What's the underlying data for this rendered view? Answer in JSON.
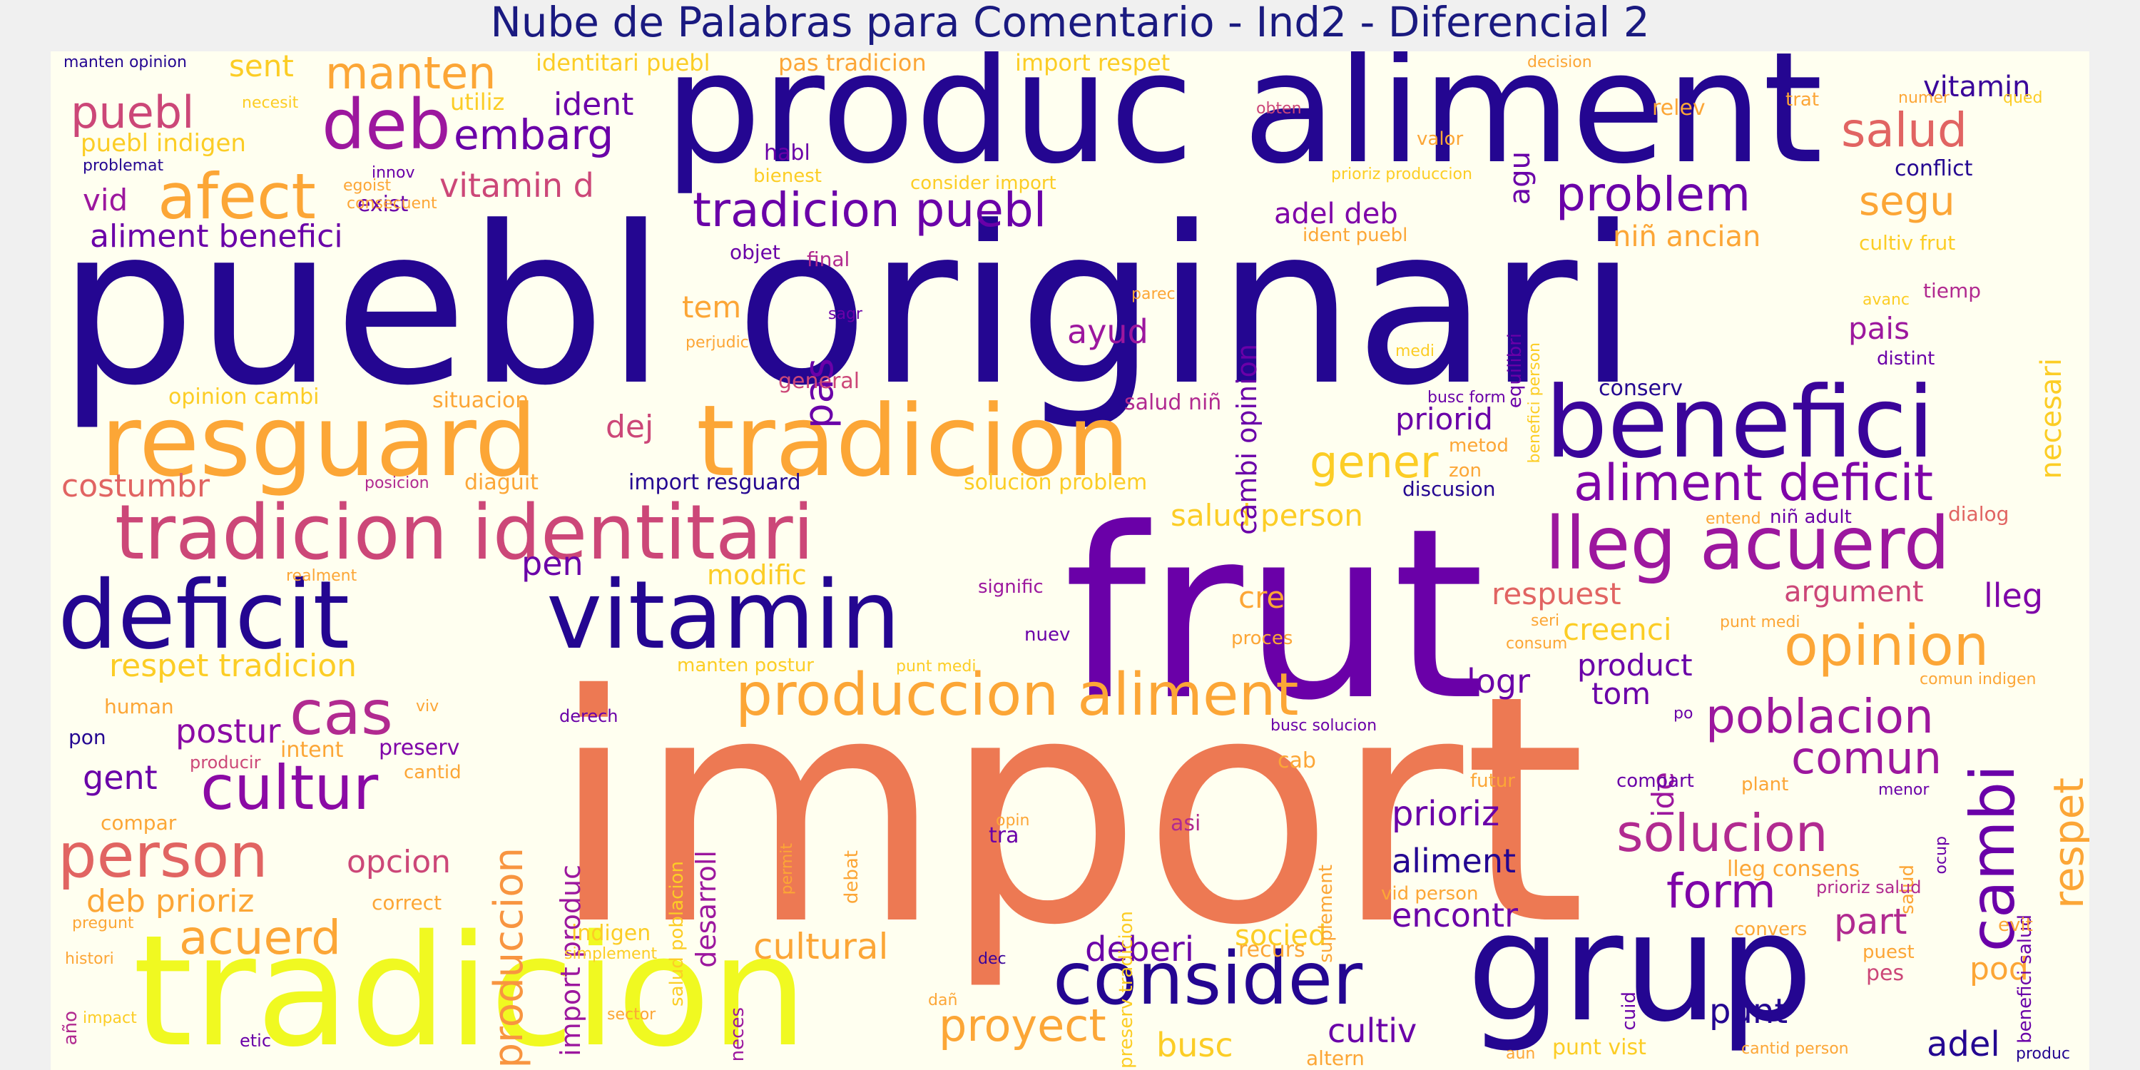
{
  "title": "Nube de Palabras para Comentario - Ind2 - Diferencial 2",
  "palette": [
    "#240691",
    "#6a00a8",
    "#b12a90",
    "#e16462",
    "#f89540",
    "#fccd25",
    "#f0f921"
  ],
  "words": [
    {
      "text": "puebl originari",
      "c": "#240691"
    },
    {
      "text": "import",
      "c": "#ed7953"
    },
    {
      "text": "frut",
      "c": "#6a00a8"
    },
    {
      "text": "produc aliment",
      "c": "#240691"
    },
    {
      "text": "tradicion",
      "c": "#f0f921"
    },
    {
      "text": "grup",
      "c": "#240691"
    },
    {
      "text": "tradicion",
      "c": "#fca636"
    },
    {
      "text": "resguard",
      "c": "#fca636"
    },
    {
      "text": "benefici",
      "c": "#3a049a"
    },
    {
      "text": "tradicion identitari",
      "c": "#cc4778"
    },
    {
      "text": "deficit",
      "c": "#240691"
    },
    {
      "text": "vitamin",
      "c": "#240691"
    },
    {
      "text": "lleg acuerd",
      "c": "#9c179e"
    },
    {
      "text": "consider",
      "c": "#240691"
    },
    {
      "text": "produccion aliment",
      "c": "#fca636"
    },
    {
      "text": "person",
      "c": "#e16462"
    },
    {
      "text": "cultur",
      "c": "#8b0aa5"
    },
    {
      "text": "cas",
      "c": "#b12a90"
    },
    {
      "text": "afect",
      "c": "#fca636"
    },
    {
      "text": "deb",
      "c": "#9c179e"
    },
    {
      "text": "tradicion puebl",
      "c": "#6a00a8"
    },
    {
      "text": "aliment deficit",
      "c": "#7e03a8"
    },
    {
      "text": "cambi",
      "c": "#6a00a8"
    },
    {
      "text": "opinion",
      "c": "#fca636"
    },
    {
      "text": "solucion",
      "c": "#b12a90"
    },
    {
      "text": "poblacion",
      "c": "#9c179e"
    },
    {
      "text": "manten",
      "c": "#fca636"
    },
    {
      "text": "puebl",
      "c": "#cc4778"
    },
    {
      "text": "embarg",
      "c": "#6a00a8"
    },
    {
      "text": "salud",
      "c": "#e16462"
    },
    {
      "text": "problem",
      "c": "#6a00a8"
    },
    {
      "text": "acuerd",
      "c": "#fca636"
    },
    {
      "text": "proyect",
      "c": "#fca636"
    },
    {
      "text": "comun",
      "c": "#9c179e"
    },
    {
      "text": "form",
      "c": "#7e03a8"
    },
    {
      "text": "respet",
      "c": "#fca636"
    },
    {
      "text": "produccion",
      "c": "#f89540"
    },
    {
      "text": "pas",
      "c": "#6a00a8"
    },
    {
      "text": "gener",
      "c": "#fccd25"
    },
    {
      "text": "segu",
      "c": "#fca636"
    },
    {
      "text": "vitamin d",
      "c": "#cc4778"
    },
    {
      "text": "aliment benefici",
      "c": "#6a00a8"
    },
    {
      "text": "deberi",
      "c": "#6a00a8"
    },
    {
      "text": "cultural",
      "c": "#fca636"
    },
    {
      "text": "punt",
      "c": "#240691"
    },
    {
      "text": "adel",
      "c": "#240691"
    },
    {
      "text": "cultiv",
      "c": "#6a00a8"
    },
    {
      "text": "busc",
      "c": "#fccd25"
    },
    {
      "text": "prioriz",
      "c": "#6a00a8"
    },
    {
      "text": "aliment",
      "c": "#240691"
    },
    {
      "text": "encontr",
      "c": "#6a00a8"
    },
    {
      "text": "opcion",
      "c": "#cc4778"
    },
    {
      "text": "postur",
      "c": "#8b0aa5"
    },
    {
      "text": "gent",
      "c": "#6a00a8"
    },
    {
      "text": "deb prioriz",
      "c": "#fca636"
    },
    {
      "text": "respet tradicion",
      "c": "#fccd25"
    },
    {
      "text": "costumbr",
      "c": "#e16462"
    },
    {
      "text": "pen",
      "c": "#6a00a8"
    },
    {
      "text": "dej",
      "c": "#cc4778"
    },
    {
      "text": "tem",
      "c": "#fca636"
    },
    {
      "text": "ayud",
      "c": "#9c179e"
    },
    {
      "text": "adel deb",
      "c": "#7e03a8"
    },
    {
      "text": "priorid",
      "c": "#6a00a8"
    },
    {
      "text": "salud person",
      "c": "#fccd25"
    },
    {
      "text": "respuest",
      "c": "#e16462"
    },
    {
      "text": "creenci",
      "c": "#fccd25"
    },
    {
      "text": "product",
      "c": "#6a00a8"
    },
    {
      "text": "tom",
      "c": "#6a00a8"
    },
    {
      "text": "logr",
      "c": "#6a00a8"
    },
    {
      "text": "argument",
      "c": "#cc4778"
    },
    {
      "text": "lleg",
      "c": "#7e03a8"
    },
    {
      "text": "pais",
      "c": "#9c179e"
    },
    {
      "text": "necesari",
      "c": "#fccd25"
    },
    {
      "text": "niñ ancian",
      "c": "#fca636"
    },
    {
      "text": "vitamin",
      "c": "#3a049a"
    },
    {
      "text": "modific",
      "c": "#fccd25"
    },
    {
      "text": "sent",
      "c": "#fccd25"
    },
    {
      "text": "ident",
      "c": "#6a00a8"
    },
    {
      "text": "vid",
      "c": "#9c179e"
    },
    {
      "text": "import produc",
      "c": "#9c179e"
    },
    {
      "text": "desarroll",
      "c": "#9c179e"
    },
    {
      "text": "part",
      "c": "#b12a90"
    },
    {
      "text": "pod",
      "c": "#fca636"
    },
    {
      "text": "cre",
      "c": "#fca636"
    },
    {
      "text": "socied",
      "c": "#fccd25"
    },
    {
      "text": "ide",
      "c": "#9c179e"
    },
    {
      "text": "agu",
      "c": "#6a00a8"
    },
    {
      "text": "cambi opinion",
      "c": "#6a00a8"
    },
    {
      "text": "puebl indigen",
      "c": "#fccd25"
    },
    {
      "text": "identitari puebl",
      "c": "#fccd25"
    },
    {
      "text": "pas tradicion",
      "c": "#fca636"
    },
    {
      "text": "import respet",
      "c": "#fccd25"
    },
    {
      "text": "manten opinion",
      "c": "#240691"
    },
    {
      "text": "necesit",
      "c": "#fccd25"
    },
    {
      "text": "utiliz",
      "c": "#fccd25"
    },
    {
      "text": "problemat",
      "c": "#240691"
    },
    {
      "text": "innov",
      "c": "#6a00a8"
    },
    {
      "text": "exist",
      "c": "#6a00a8"
    },
    {
      "text": "egoist",
      "c": "#fca636"
    },
    {
      "text": "consecuent",
      "c": "#fca636"
    },
    {
      "text": "habl",
      "c": "#6a00a8"
    },
    {
      "text": "bienest",
      "c": "#fccd25"
    },
    {
      "text": "consider import",
      "c": "#fccd25"
    },
    {
      "text": "objet",
      "c": "#6a00a8"
    },
    {
      "text": "final",
      "c": "#b12a90"
    },
    {
      "text": "sagr",
      "c": "#6a00a8"
    },
    {
      "text": "perjudic",
      "c": "#fca636"
    },
    {
      "text": "general",
      "c": "#cc4778"
    },
    {
      "text": "opinion cambi",
      "c": "#fccd25"
    },
    {
      "text": "situacion",
      "c": "#fca636"
    },
    {
      "text": "posicion",
      "c": "#b12a90"
    },
    {
      "text": "diaguit",
      "c": "#fca636"
    },
    {
      "text": "import resguard",
      "c": "#240691"
    },
    {
      "text": "solucion problem",
      "c": "#fccd25"
    },
    {
      "text": "salud niñ",
      "c": "#b12a90"
    },
    {
      "text": "realment",
      "c": "#fca636"
    },
    {
      "text": "human",
      "c": "#fca636"
    },
    {
      "text": "viv",
      "c": "#fca636"
    },
    {
      "text": "derech",
      "c": "#6a00a8"
    },
    {
      "text": "pon",
      "c": "#240691"
    },
    {
      "text": "producir",
      "c": "#cc4778"
    },
    {
      "text": "intent",
      "c": "#fca636"
    },
    {
      "text": "preserv",
      "c": "#7e03a8"
    },
    {
      "text": "cantid",
      "c": "#fca636"
    },
    {
      "text": "compar",
      "c": "#fca636"
    },
    {
      "text": "correct",
      "c": "#fca636"
    },
    {
      "text": "pregunt",
      "c": "#fca636"
    },
    {
      "text": "histori",
      "c": "#fca636"
    },
    {
      "text": "indigen",
      "c": "#fccd25"
    },
    {
      "text": "simplement",
      "c": "#fccd25"
    },
    {
      "text": "año",
      "c": "#b12a90"
    },
    {
      "text": "impact",
      "c": "#fccd25"
    },
    {
      "text": "etic",
      "c": "#6a00a8"
    },
    {
      "text": "sector",
      "c": "#fca636"
    },
    {
      "text": "neces",
      "c": "#9c179e"
    },
    {
      "text": "dañ",
      "c": "#fca636"
    },
    {
      "text": "dec",
      "c": "#3a049a"
    },
    {
      "text": "manten postur",
      "c": "#fccd25"
    },
    {
      "text": "salud poblacion",
      "c": "#fccd25"
    },
    {
      "text": "permit",
      "c": "#fca636"
    },
    {
      "text": "debat",
      "c": "#fca636"
    },
    {
      "text": "opin",
      "c": "#fca636"
    },
    {
      "text": "tra",
      "c": "#6a00a8"
    },
    {
      "text": "punt medi",
      "c": "#fccd25"
    },
    {
      "text": "preserv tradicion",
      "c": "#fccd25"
    },
    {
      "text": "asi",
      "c": "#b12a90"
    },
    {
      "text": "busc solucion",
      "c": "#6a00a8"
    },
    {
      "text": "cab",
      "c": "#fca636"
    },
    {
      "text": "suplement",
      "c": "#fca636"
    },
    {
      "text": "nuev",
      "c": "#6a00a8"
    },
    {
      "text": "signific",
      "c": "#9c179e"
    },
    {
      "text": "proces",
      "c": "#fca636"
    },
    {
      "text": "salud",
      "c": "#fca636"
    },
    {
      "text": "decision",
      "c": "#fca636"
    },
    {
      "text": "relev",
      "c": "#fca636"
    },
    {
      "text": "trat",
      "c": "#fca636"
    },
    {
      "text": "numer",
      "c": "#fca636"
    },
    {
      "text": "qued",
      "c": "#fccd25"
    },
    {
      "text": "obten",
      "c": "#cc4778"
    },
    {
      "text": "valor",
      "c": "#fca636"
    },
    {
      "text": "prioriz produccion",
      "c": "#fccd25"
    },
    {
      "text": "conflict",
      "c": "#240691"
    },
    {
      "text": "cultiv frut",
      "c": "#fccd25"
    },
    {
      "text": "tiemp",
      "c": "#b12a90"
    },
    {
      "text": "avanc",
      "c": "#fccd25"
    },
    {
      "text": "distint",
      "c": "#6a00a8"
    },
    {
      "text": "ident puebl",
      "c": "#fca636"
    },
    {
      "text": "equilibri",
      "c": "#6a00a8"
    },
    {
      "text": "benefici person",
      "c": "#fccd25"
    },
    {
      "text": "parec",
      "c": "#fca636"
    },
    {
      "text": "medi",
      "c": "#fccd25"
    },
    {
      "text": "conserv",
      "c": "#240691"
    },
    {
      "text": "busc form",
      "c": "#6a00a8"
    },
    {
      "text": "metod",
      "c": "#fca636"
    },
    {
      "text": "zon",
      "c": "#fca636"
    },
    {
      "text": "discusion",
      "c": "#240691"
    },
    {
      "text": "entend",
      "c": "#fca636"
    },
    {
      "text": "niñ adult",
      "c": "#6a00a8"
    },
    {
      "text": "dialog",
      "c": "#e16462"
    },
    {
      "text": "seri",
      "c": "#fca636"
    },
    {
      "text": "consum",
      "c": "#fca636"
    },
    {
      "text": "punt medi",
      "c": "#fca636"
    },
    {
      "text": "comun indigen",
      "c": "#fca636"
    },
    {
      "text": "po",
      "c": "#6a00a8"
    },
    {
      "text": "futur",
      "c": "#fca636"
    },
    {
      "text": "compart",
      "c": "#6a00a8"
    },
    {
      "text": "plant",
      "c": "#fca636"
    },
    {
      "text": "menor",
      "c": "#6a00a8"
    },
    {
      "text": "ocup",
      "c": "#6a00a8"
    },
    {
      "text": "benefici salud",
      "c": "#6a00a8"
    },
    {
      "text": "lleg consens",
      "c": "#fca636"
    },
    {
      "text": "vid person",
      "c": "#fca636"
    },
    {
      "text": "prioriz salud",
      "c": "#b12a90"
    },
    {
      "text": "evit",
      "c": "#fca636"
    },
    {
      "text": "convers",
      "c": "#fca636"
    },
    {
      "text": "puest",
      "c": "#fca636"
    },
    {
      "text": "pes",
      "c": "#cc4778"
    },
    {
      "text": "cuid",
      "c": "#6a00a8"
    },
    {
      "text": "recurs",
      "c": "#fca636"
    },
    {
      "text": "altern",
      "c": "#fca636"
    },
    {
      "text": "punt vist",
      "c": "#fccd25"
    },
    {
      "text": "aun",
      "c": "#fca636"
    },
    {
      "text": "cantid person",
      "c": "#fca636"
    },
    {
      "text": "produc",
      "c": "#240691"
    }
  ]
}
